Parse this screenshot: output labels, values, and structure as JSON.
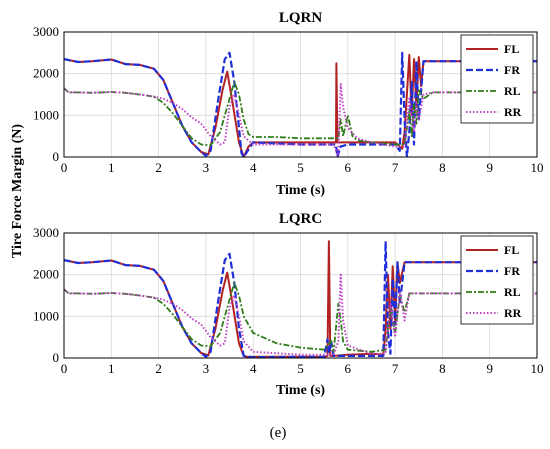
{
  "caption": "(e)",
  "ylabel": "Tire Force Margin (N)",
  "colors": {
    "FL": "#b22222",
    "FR": "#1f2fd8",
    "RL": "#2e7d1a",
    "RR": "#c040c8"
  },
  "chart_data": [
    {
      "type": "line",
      "title": "LQRN",
      "xlabel": "Time (s)",
      "xlim": [
        0,
        10
      ],
      "ylim": [
        0,
        3000
      ],
      "xticks": [
        "0",
        "1",
        "2",
        "3",
        "4",
        "5",
        "6",
        "7",
        "8",
        "9",
        "10"
      ],
      "yticks": [
        "0",
        "1000",
        "2000",
        "3000"
      ],
      "grid": true,
      "legend": "top-right",
      "series": [
        {
          "name": "FL",
          "x": [
            0,
            0.3,
            0.6,
            1.0,
            1.3,
            1.6,
            1.9,
            2.1,
            2.3,
            2.5,
            2.7,
            2.9,
            3.05,
            3.2,
            3.35,
            3.45,
            3.55,
            3.7,
            3.8,
            3.9,
            4.0,
            5.0,
            5.75,
            5.76,
            5.78,
            5.8,
            5.9,
            6.0,
            6.5,
            7.0,
            7.15,
            7.2,
            7.3,
            7.35,
            7.4,
            7.45,
            7.5,
            7.55,
            7.6,
            7.7,
            7.8,
            8.0,
            9.0,
            10.0
          ],
          "y": [
            2350,
            2280,
            2300,
            2340,
            2230,
            2210,
            2120,
            1850,
            1300,
            750,
            350,
            120,
            60,
            700,
            1600,
            2050,
            1400,
            350,
            0,
            250,
            350,
            350,
            350,
            2250,
            350,
            350,
            350,
            350,
            350,
            350,
            200,
            600,
            2450,
            1000,
            2350,
            1200,
            2400,
            1700,
            2300,
            2300,
            2300,
            2300,
            2300,
            2300
          ]
        },
        {
          "name": "FR",
          "x": [
            0,
            0.3,
            0.6,
            1.0,
            1.3,
            1.6,
            1.9,
            2.1,
            2.3,
            2.5,
            2.7,
            2.9,
            3.0,
            3.1,
            3.25,
            3.4,
            3.5,
            3.6,
            3.7,
            3.75,
            3.8,
            4.0,
            5.0,
            5.75,
            5.78,
            5.85,
            6.0,
            7.0,
            7.1,
            7.15,
            7.2,
            7.25,
            7.3,
            7.35,
            7.4,
            7.45,
            7.5,
            7.6,
            7.8,
            8.0,
            9.0,
            10.0
          ],
          "y": [
            2350,
            2280,
            2300,
            2340,
            2230,
            2210,
            2120,
            1850,
            1300,
            750,
            350,
            120,
            30,
            150,
            1300,
            2350,
            2500,
            1800,
            700,
            100,
            0,
            350,
            300,
            300,
            0,
            250,
            300,
            300,
            150,
            2500,
            900,
            0,
            600,
            1800,
            300,
            2300,
            900,
            2300,
            2300,
            2300,
            2300,
            2300
          ]
        },
        {
          "name": "RL",
          "x": [
            0,
            0.1,
            0.3,
            0.6,
            1.0,
            1.3,
            1.6,
            1.9,
            2.1,
            2.3,
            2.5,
            2.7,
            2.9,
            3.1,
            3.3,
            3.5,
            3.6,
            3.7,
            3.8,
            3.9,
            4.0,
            4.5,
            5.0,
            5.5,
            5.8,
            5.85,
            5.9,
            6.0,
            6.1,
            6.2,
            6.5,
            7.0,
            7.2,
            7.3,
            7.35,
            7.4,
            7.45,
            7.5,
            7.6,
            7.8,
            8.0,
            9.0,
            10.0
          ],
          "y": [
            1650,
            1550,
            1550,
            1540,
            1560,
            1540,
            1500,
            1450,
            1300,
            1050,
            750,
            450,
            300,
            280,
            600,
            1400,
            1800,
            1500,
            900,
            550,
            480,
            480,
            450,
            450,
            450,
            900,
            500,
            1000,
            500,
            400,
            350,
            300,
            300,
            1100,
            500,
            1300,
            800,
            1600,
            1400,
            1550,
            1550,
            1550,
            1550
          ]
        },
        {
          "name": "RR",
          "x": [
            0,
            0.1,
            0.3,
            0.6,
            1.0,
            1.3,
            1.6,
            1.9,
            2.1,
            2.3,
            2.5,
            2.7,
            2.9,
            3.0,
            3.1,
            3.3,
            3.4,
            3.5,
            3.6,
            3.7,
            3.8,
            4.0,
            5.0,
            5.7,
            5.8,
            5.85,
            5.9,
            6.0,
            6.2,
            6.5,
            7.0,
            7.2,
            7.3,
            7.4,
            7.45,
            7.5,
            7.6,
            7.8,
            8.0,
            9.0,
            10.0
          ],
          "y": [
            1650,
            1550,
            1550,
            1540,
            1560,
            1540,
            1500,
            1450,
            1400,
            1300,
            1150,
            950,
            800,
            650,
            500,
            300,
            350,
            1200,
            1500,
            1000,
            500,
            300,
            300,
            300,
            0,
            1750,
            1200,
            700,
            450,
            350,
            250,
            250,
            1400,
            600,
            1300,
            900,
            1500,
            1550,
            1550,
            1550,
            1550
          ]
        }
      ]
    },
    {
      "type": "line",
      "title": "LQRC",
      "xlabel": "Time (s)",
      "xlim": [
        0,
        10
      ],
      "ylim": [
        0,
        3000
      ],
      "xticks": [
        "0",
        "1",
        "2",
        "3",
        "4",
        "5",
        "6",
        "7",
        "8",
        "9",
        "10"
      ],
      "yticks": [
        "0",
        "1000",
        "2000",
        "3000"
      ],
      "grid": true,
      "legend": "top-right",
      "series": [
        {
          "name": "FL",
          "x": [
            0,
            0.3,
            0.6,
            1.0,
            1.3,
            1.6,
            1.9,
            2.1,
            2.3,
            2.5,
            2.7,
            2.9,
            3.05,
            3.2,
            3.35,
            3.45,
            3.55,
            3.7,
            3.8,
            3.9,
            4.0,
            4.5,
            5.0,
            5.5,
            5.57,
            5.6,
            5.63,
            5.7,
            6.0,
            6.5,
            6.75,
            6.8,
            6.85,
            6.9,
            6.95,
            7.0,
            7.05,
            7.1,
            7.2,
            7.3,
            7.5,
            8.0,
            9.0,
            10.0
          ],
          "y": [
            2350,
            2280,
            2300,
            2340,
            2230,
            2210,
            2120,
            1850,
            1300,
            750,
            350,
            120,
            60,
            700,
            1600,
            2050,
            1400,
            350,
            50,
            20,
            30,
            30,
            30,
            30,
            50,
            2800,
            50,
            50,
            80,
            100,
            80,
            700,
            2000,
            700,
            2200,
            900,
            2300,
            1800,
            2300,
            2300,
            2300,
            2300,
            2300,
            2300
          ]
        },
        {
          "name": "FR",
          "x": [
            0,
            0.3,
            0.6,
            1.0,
            1.3,
            1.6,
            1.9,
            2.1,
            2.3,
            2.5,
            2.7,
            2.9,
            3.0,
            3.1,
            3.25,
            3.4,
            3.5,
            3.6,
            3.7,
            3.8,
            4.0,
            5.0,
            5.5,
            5.57,
            5.6,
            5.65,
            5.7,
            6.0,
            6.5,
            6.75,
            6.8,
            6.85,
            6.9,
            6.95,
            7.0,
            7.05,
            7.1,
            7.2,
            7.3,
            7.5,
            8.0,
            9.0,
            10.0
          ],
          "y": [
            2350,
            2280,
            2300,
            2340,
            2230,
            2210,
            2120,
            1850,
            1300,
            750,
            350,
            120,
            30,
            150,
            1300,
            2350,
            2500,
            1800,
            700,
            50,
            20,
            30,
            30,
            450,
            100,
            400,
            50,
            50,
            50,
            50,
            2800,
            600,
            100,
            1900,
            800,
            2300,
            1300,
            2300,
            2300,
            2300,
            2300,
            2300,
            2300
          ]
        },
        {
          "name": "RL",
          "x": [
            0,
            0.1,
            0.3,
            0.6,
            1.0,
            1.3,
            1.6,
            1.9,
            2.1,
            2.3,
            2.5,
            2.7,
            2.9,
            3.1,
            3.3,
            3.5,
            3.6,
            3.7,
            3.8,
            4.0,
            4.5,
            5.0,
            5.5,
            5.65,
            5.7,
            5.8,
            5.85,
            5.9,
            6.0,
            6.5,
            6.8,
            6.9,
            7.0,
            7.1,
            7.2,
            7.3,
            7.5,
            8.0,
            9.0,
            10.0
          ],
          "y": [
            1650,
            1550,
            1550,
            1540,
            1560,
            1540,
            1500,
            1450,
            1300,
            1050,
            750,
            450,
            300,
            280,
            600,
            1400,
            1800,
            1500,
            1000,
            600,
            350,
            250,
            200,
            400,
            150,
            1300,
            900,
            400,
            200,
            150,
            200,
            1200,
            600,
            1500,
            1100,
            1550,
            1550,
            1550,
            1550,
            1550
          ]
        },
        {
          "name": "RR",
          "x": [
            0,
            0.1,
            0.3,
            0.6,
            1.0,
            1.3,
            1.6,
            1.9,
            2.1,
            2.3,
            2.5,
            2.7,
            2.9,
            3.0,
            3.1,
            3.3,
            3.4,
            3.5,
            3.6,
            3.7,
            3.8,
            4.0,
            5.0,
            5.7,
            5.8,
            5.85,
            5.9,
            6.0,
            6.5,
            6.8,
            6.9,
            7.0,
            7.1,
            7.2,
            7.3,
            7.5,
            8.0,
            9.0,
            10.0
          ],
          "y": [
            1650,
            1550,
            1550,
            1540,
            1560,
            1540,
            1500,
            1450,
            1400,
            1300,
            1150,
            950,
            800,
            650,
            500,
            300,
            350,
            1200,
            1500,
            1000,
            400,
            150,
            80,
            80,
            400,
            2000,
            900,
            300,
            100,
            100,
            1300,
            500,
            1600,
            900,
            1550,
            1550,
            1550,
            1550,
            1550
          ]
        }
      ]
    }
  ]
}
